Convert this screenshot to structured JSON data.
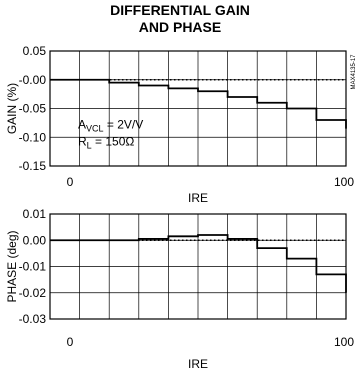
{
  "figure": {
    "title_line1": "DIFFERENTIAL GAIN",
    "title_line2": "AND PHASE",
    "code": "MAX4135-17"
  },
  "chart_data": [
    {
      "type": "line",
      "step": true,
      "ylabel": "GAIN (%)",
      "xlabel": "IRE",
      "x_tick_labels": [
        "0",
        "100"
      ],
      "xlim": [
        0,
        100
      ],
      "ylim": [
        -0.15,
        0.05
      ],
      "y_ticks": [
        0.05,
        0.0,
        -0.05,
        -0.1,
        -0.15
      ],
      "y_tick_labels": [
        "0.05",
        "-0.00",
        "-0.05",
        "-0.10",
        "-0.15"
      ],
      "grid": true,
      "reference_line": {
        "y": 0,
        "style": "dotted"
      },
      "annotation": {
        "line1_main": "A",
        "line1_sub": "VCL",
        "line1_rest": " = 2V/V",
        "line2_main": "R",
        "line2_sub": "L",
        "line2_rest": " = 150Ω"
      },
      "series": [
        {
          "x": [
            0,
            10,
            20,
            30,
            40,
            50,
            60,
            70,
            80,
            90,
            100
          ],
          "y": [
            0.0,
            0.0,
            -0.005,
            -0.01,
            -0.015,
            -0.02,
            -0.03,
            -0.04,
            -0.05,
            -0.07,
            -0.085
          ]
        }
      ]
    },
    {
      "type": "line",
      "step": true,
      "ylabel": "PHASE (deg)",
      "xlabel": "IRE",
      "x_tick_labels": [
        "0",
        "100"
      ],
      "xlim": [
        0,
        100
      ],
      "ylim": [
        -0.03,
        0.01
      ],
      "y_ticks": [
        0.01,
        0.0,
        -0.01,
        -0.02,
        -0.03
      ],
      "y_tick_labels": [
        "0.01",
        "0.00",
        "-0.01",
        "-0.02",
        "-0.03"
      ],
      "grid": true,
      "reference_line": {
        "y": 0,
        "style": "dotted"
      },
      "series": [
        {
          "x": [
            0,
            10,
            20,
            30,
            40,
            50,
            60,
            70,
            80,
            90,
            100
          ],
          "y": [
            0.0,
            0.0,
            0.0,
            0.0005,
            0.0015,
            0.002,
            0.0005,
            -0.003,
            -0.007,
            -0.013,
            -0.02
          ]
        }
      ]
    }
  ]
}
